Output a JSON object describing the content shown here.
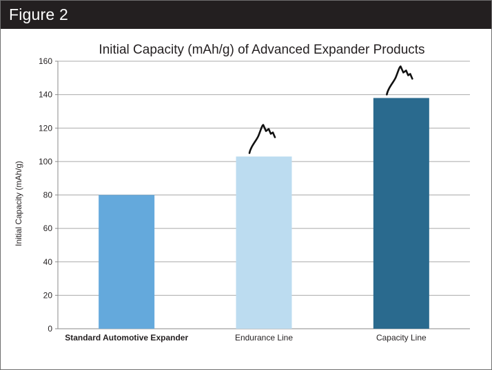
{
  "figure": {
    "label": "Figure 2"
  },
  "chart_data": {
    "type": "bar",
    "title": "Initial Capacity (mAh/g) of Advanced Expander Products",
    "xlabel": "",
    "ylabel": "Initial Capacity (mAh/g)",
    "categories": [
      "Standard Automotive Expander",
      "Endurance Line",
      "Capacity Line"
    ],
    "values": [
      80,
      103,
      138
    ],
    "colors": [
      "#64a9dc",
      "#bcdcf0",
      "#2a6a8e"
    ],
    "ylim": [
      0,
      160
    ],
    "yticks": [
      0,
      20,
      40,
      60,
      80,
      100,
      120,
      140,
      160
    ],
    "grid": true,
    "legend": "none",
    "annotations": [
      "growth-squiggle",
      "growth-squiggle"
    ]
  }
}
